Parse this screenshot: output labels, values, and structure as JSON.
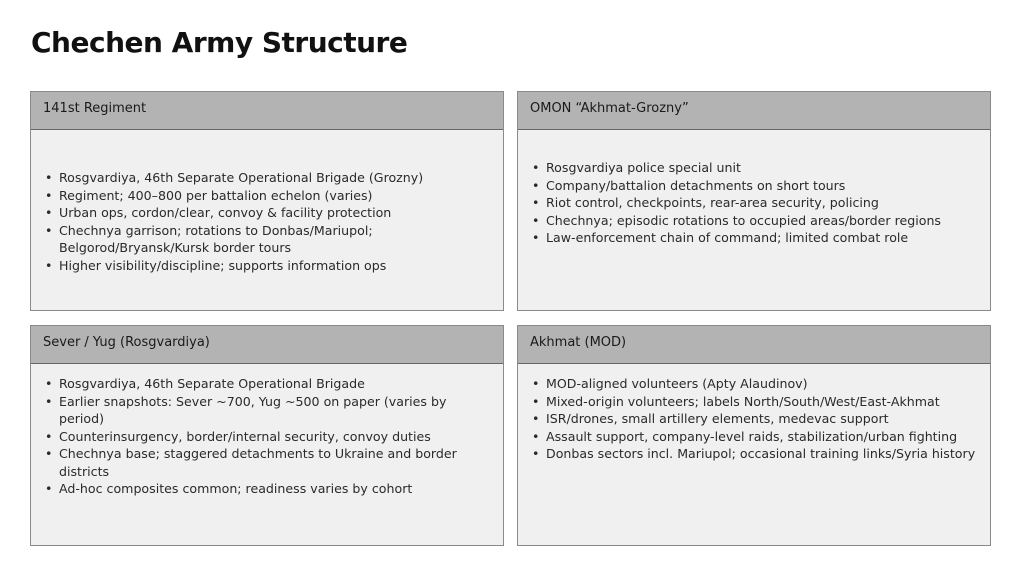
{
  "title": "Chechen Army Structure",
  "cards": [
    {
      "header": "141st Regiment",
      "items": [
        "Rosgvardiya, 46th Separate Operational Brigade (Grozny)",
        "Regiment; 400–800 per battalion echelon (varies)",
        "Urban ops, cordon/clear, convoy & facility protection",
        "Chechnya garrison; rotations to Donbas/Mariupol; Belgorod/Bryansk/Kursk border tours",
        "Higher visibility/discipline; supports information ops"
      ]
    },
    {
      "header": "OMON “Akhmat-Grozny”",
      "items": [
        "Rosgvardiya police special unit",
        "Company/battalion detachments on short tours",
        "Riot control, checkpoints, rear-area security, policing",
        "Chechnya; episodic rotations to occupied areas/border regions",
        "Law-enforcement chain of command; limited combat role"
      ]
    },
    {
      "header": "Sever / Yug (Rosgvardiya)",
      "items": [
        "Rosgvardiya, 46th Separate Operational Brigade",
        "Earlier snapshots: Sever ~700, Yug ~500 on paper (varies by period)",
        "Counterinsurgency, border/internal security, convoy duties",
        "Chechnya base; staggered detachments to Ukraine and border districts",
        "Ad-hoc composites common; readiness varies by cohort"
      ]
    },
    {
      "header": "Akhmat (MOD)",
      "items": [
        "MOD-aligned volunteers (Apty Alaudinov)",
        "Mixed-origin volunteers; labels North/South/West/East-Akhmat",
        "ISR/drones, small artillery elements, medevac support",
        "Assault support, company-level raids, stabilization/urban fighting",
        "Donbas sectors incl. Mariupol; occasional training links/Syria history"
      ]
    }
  ]
}
